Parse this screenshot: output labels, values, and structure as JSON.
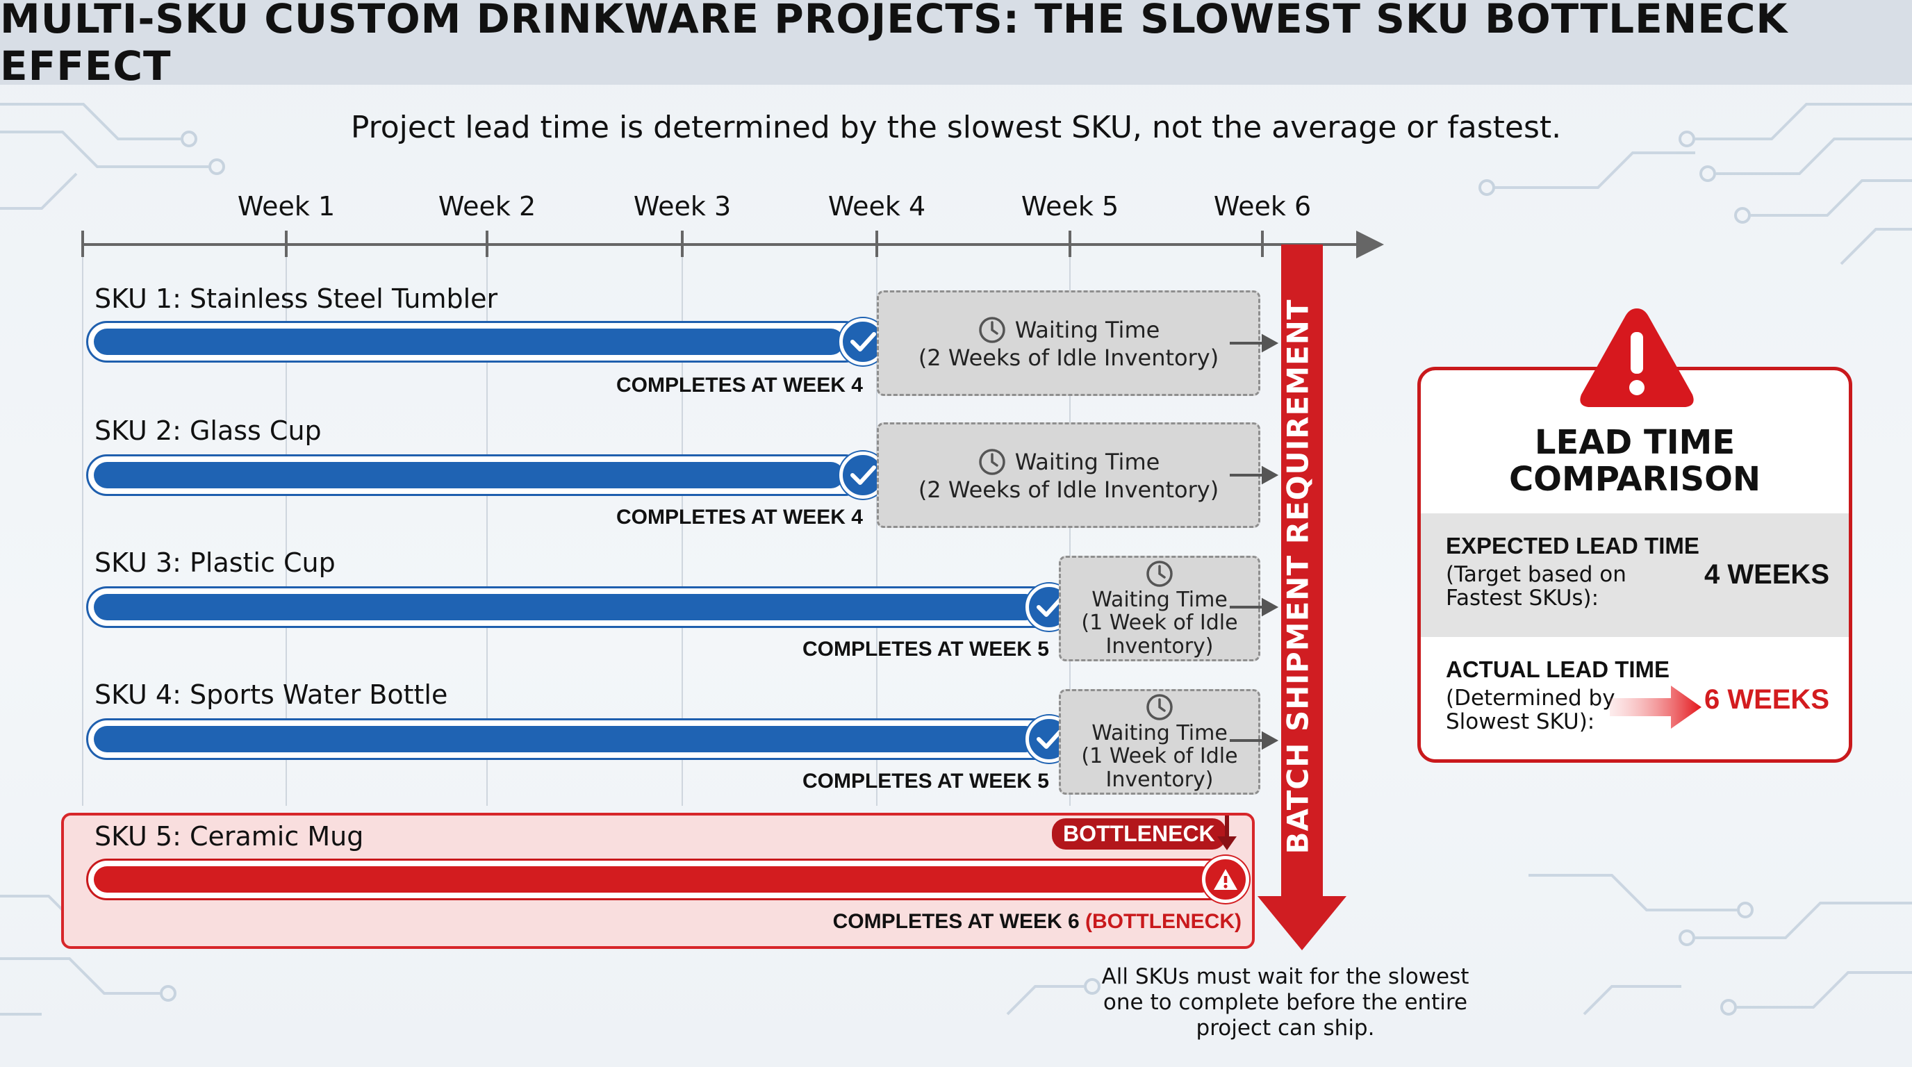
{
  "title": "MULTI-SKU CUSTOM DRINKWARE PROJECTS: THE SLOWEST SKU BOTTLENECK EFFECT",
  "subtitle": "Project lead time is determined by the slowest SKU, not the average or fastest.",
  "timeline": {
    "weeks": [
      "Week 1",
      "Week 2",
      "Week 3",
      "Week 4",
      "Week 5",
      "Week 6"
    ]
  },
  "skus": [
    {
      "name": "SKU 1: Stainless Steel Tumbler",
      "complete_week": 4,
      "completes": "COMPLETES AT WEEK 4",
      "wait_title": "Waiting Time",
      "wait_detail": "(2 Weeks of Idle Inventory)"
    },
    {
      "name": "SKU 2: Glass Cup",
      "complete_week": 4,
      "completes": "COMPLETES AT WEEK 4",
      "wait_title": "Waiting Time",
      "wait_detail": "(2 Weeks of Idle Inventory)"
    },
    {
      "name": "SKU 3: Plastic Cup",
      "complete_week": 5,
      "completes": "COMPLETES AT WEEK 5",
      "wait_title": "Waiting Time",
      "wait_detail_1": "(1 Week of Idle",
      "wait_detail_2": "Inventory)"
    },
    {
      "name": "SKU 4: Sports Water Bottle",
      "complete_week": 5,
      "completes": "COMPLETES AT WEEK 5",
      "wait_title": "Waiting Time",
      "wait_detail_1": "(1 Week of Idle",
      "wait_detail_2": "Inventory)"
    },
    {
      "name": "SKU 5: Ceramic Mug",
      "complete_week": 6,
      "completes": "COMPLETES AT WEEK 6",
      "completes_tag": "(BOTTLENECK)",
      "badge": "BOTTLENECK"
    }
  ],
  "batch_requirement": "BATCH SHIPMENT REQUIREMENT",
  "footnote": {
    "line1": "All SKUs must wait for the slowest",
    "line2": "one to complete before the entire",
    "line3": "project can ship."
  },
  "comparison": {
    "title_line1": "LEAD TIME",
    "title_line2": "COMPARISON",
    "expected_label": "EXPECTED LEAD TIME",
    "expected_sub1": "(Target based on",
    "expected_sub2": "Fastest SKUs):",
    "expected_value": "4 WEEKS",
    "actual_label": "ACTUAL LEAD TIME",
    "actual_sub1": "(Determined by",
    "actual_sub2": "Slowest SKU):",
    "actual_value": "6 WEEKS"
  },
  "colors": {
    "blue": "#1f63b3",
    "red": "#d31c1f",
    "gray": "#d7d7d7"
  }
}
